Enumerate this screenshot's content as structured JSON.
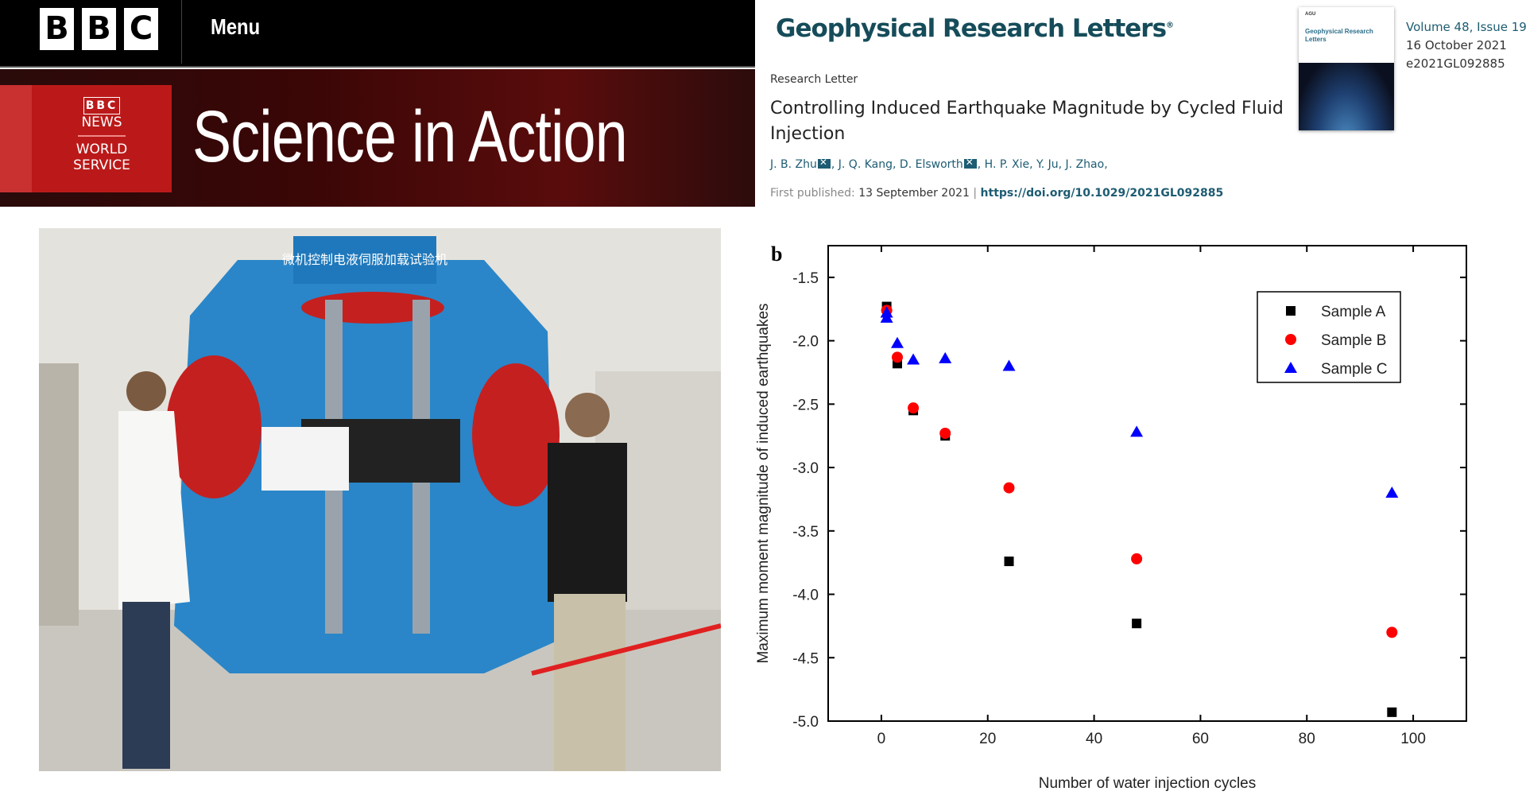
{
  "bbc": {
    "logo_letters": [
      "B",
      "B",
      "C"
    ],
    "menu_label": "Menu",
    "ws_logo": {
      "bbc": "BBC",
      "news": "NEWS",
      "world": "WORLD",
      "service": "SERVICE"
    },
    "show_title": "Science in Action"
  },
  "journal": {
    "name": "Geophysical Research Letters",
    "cover_title": "Geophysical Research Letters",
    "cover_org": "AGU",
    "volume": "Volume 48, Issue 19",
    "issue_date": "16 October 2021",
    "article_id": "e2021GL092885",
    "article_type": "Research Letter",
    "article_title": "Controlling Induced Earthquake Magnitude by Cycled Fluid Injection",
    "authors": [
      {
        "name": "J. B. Zhu",
        "mail": true
      },
      {
        "name": "J. Q. Kang",
        "mail": false
      },
      {
        "name": "D. Elsworth",
        "mail": true
      },
      {
        "name": "H. P. Xie",
        "mail": false
      },
      {
        "name": "Y. Ju",
        "mail": false
      },
      {
        "name": "J. Zhao",
        "mail": false
      }
    ],
    "first_published_label": "First published:",
    "first_published": "13 September 2021",
    "doi": "https://doi.org/10.1029/2021GL092885"
  },
  "photo": {
    "machine_sign": "微机控制电液伺服加载试验机"
  },
  "chart_data": {
    "type": "scatter",
    "panel_label": "b",
    "xlabel": "Number of water injection cycles",
    "ylabel": "Maximum moment magnitude of induced earthquakes",
    "xlim": [
      -10,
      110
    ],
    "ylim": [
      -5.0,
      -1.25
    ],
    "xticks": [
      0,
      20,
      40,
      60,
      80,
      100
    ],
    "yticks": [
      "-1.5",
      "-2.0",
      "-2.5",
      "-3.0",
      "-3.5",
      "-4.0",
      "-4.5",
      "-5.0"
    ],
    "grid": false,
    "legend_position": "top-right",
    "series": [
      {
        "name": "Sample A",
        "marker": "square",
        "color": "#000000",
        "x": [
          1,
          3,
          6,
          12,
          24,
          48,
          96
        ],
        "y": [
          -1.73,
          -2.18,
          -2.55,
          -2.75,
          -3.74,
          -4.23,
          -4.93
        ]
      },
      {
        "name": "Sample B",
        "marker": "circle",
        "color": "#ff0000",
        "x": [
          1,
          3,
          6,
          12,
          24,
          48,
          96
        ],
        "y": [
          -1.76,
          -2.13,
          -2.53,
          -2.73,
          -3.16,
          -3.72,
          -4.3
        ]
      },
      {
        "name": "Sample C",
        "marker": "triangle",
        "color": "#0000ff",
        "x": [
          1,
          1,
          3,
          6,
          12,
          24,
          48,
          96
        ],
        "y": [
          -1.78,
          -1.82,
          -2.02,
          -2.15,
          -2.14,
          -2.2,
          -2.72,
          -3.2
        ]
      }
    ]
  }
}
